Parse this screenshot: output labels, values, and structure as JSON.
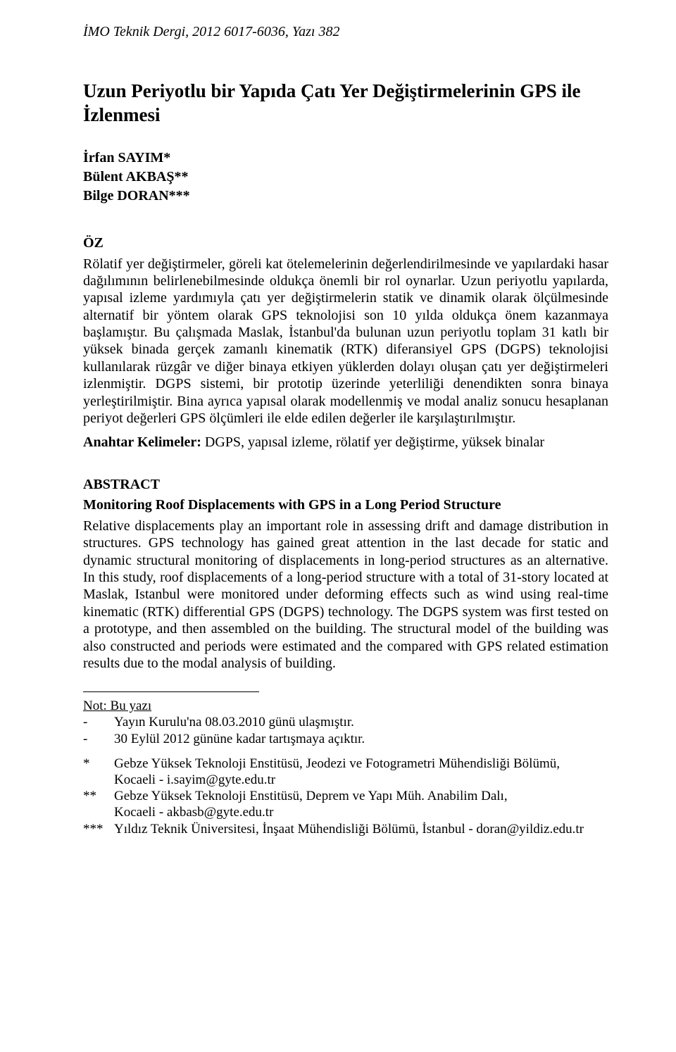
{
  "header": {
    "citation": "İMO Teknik Dergi, 2012 6017-6036, Yazı 382"
  },
  "title": "Uzun Periyotlu bir Yapıda Çatı Yer Değiştirmelerinin GPS ile İzlenmesi",
  "authors": {
    "a1": "İrfan SAYIM*",
    "a2": "Bülent AKBAŞ**",
    "a3": "Bilge DORAN***"
  },
  "oz": {
    "heading": "ÖZ",
    "body": "Rölatif yer değiştirmeler, göreli kat ötelemelerinin değerlendirilmesinde ve yapılardaki hasar dağılımının belirlenebilmesinde oldukça önemli bir rol oynarlar.  Uzun periyotlu yapılarda, yapısal izleme yardımıyla çatı yer değiştirmelerin statik ve dinamik olarak ölçülmesinde alternatif bir yöntem olarak GPS teknolojisi son 10 yılda oldukça önem kazanmaya başlamıştır. Bu çalışmada Maslak, İstanbul'da bulunan uzun periyotlu toplam 31 katlı bir yüksek binada gerçek zamanlı kinematik (RTK) diferansiyel GPS (DGPS) teknolojisi kullanılarak rüzgâr ve diğer binaya etkiyen yüklerden dolayı oluşan çatı yer değiştirmeleri izlenmiştir.  DGPS sistemi, bir prototip üzerinde yeterliliği denendikten sonra binaya yerleştirilmiştir.  Bina ayrıca yapısal olarak modellenmiş ve modal analiz sonucu hesaplanan periyot değerleri GPS ölçümleri ile elde edilen değerler ile karşılaştırılmıştır."
  },
  "keywords": {
    "label": "Anahtar Kelimeler:",
    "text": " DGPS, yapısal izleme, rölatif yer değiştirme, yüksek binalar"
  },
  "abstract": {
    "heading": "ABSTRACT",
    "subtitle": "Monitoring Roof Displacements with GPS in a Long Period Structure",
    "body": "Relative displacements play an important role in assessing drift and damage distribution in structures. GPS technology has gained great attention in the last decade for static and dynamic structural monitoring of displacements in long-period structures as an alternative. In this study, roof displacements of a long-period structure with a total of 31-story located at Maslak, Istanbul were monitored under deforming effects such as wind using real-time kinematic (RTK) differential GPS (DGPS) technology. The DGPS system was first tested on a prototype, and then assembled on the building. The structural model of the building was also constructed and periods were estimated and the compared with GPS related estimation results due to the modal analysis of building."
  },
  "footnotes": {
    "note_heading": "Not: Bu yazı",
    "note_l1_marker": "-",
    "note_l1": "Yayın Kurulu'na 08.03.2010 günü ulaşmıştır.",
    "note_l2_marker": "-",
    "note_l2": "30 Eylül 2012 gününe kadar tartışmaya açıktır.",
    "f1_marker": "*",
    "f1_line1": "Gebze Yüksek Teknoloji Enstitüsü, Jeodezi ve Fotogrametri Mühendisliği Bölümü,",
    "f1_line2": "Kocaeli - i.sayim@gyte.edu.tr",
    "f2_marker": "**",
    "f2_line1": "Gebze Yüksek Teknoloji Enstitüsü, Deprem ve Yapı Müh. Anabilim Dalı,",
    "f2_line2": "Kocaeli - akbasb@gyte.edu.tr",
    "f3_marker": "***",
    "f3": "Yıldız Teknik Üniversitesi, İnşaat Mühendisliği Bölümü, İstanbul - doran@yildiz.edu.tr"
  }
}
